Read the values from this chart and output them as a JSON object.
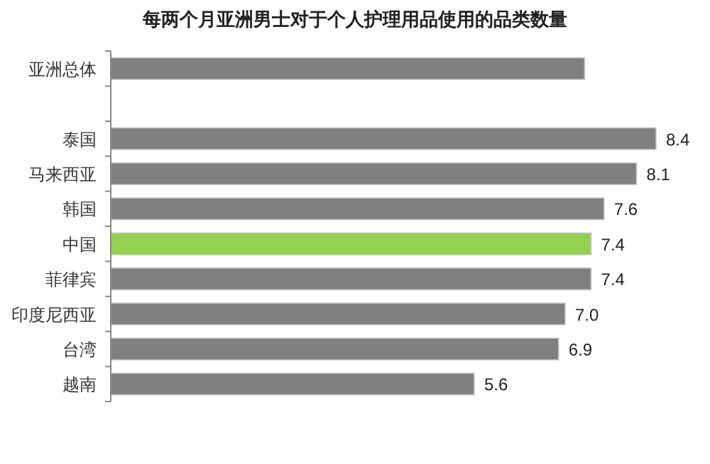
{
  "chart_data": {
    "type": "bar",
    "orientation": "horizontal",
    "title": "每两个月亚洲男士对于个人护理用品使用的品类数量",
    "categories": [
      "亚洲总体",
      null,
      "泰国",
      "马来西亚",
      "韩国",
      "中国",
      "菲律宾",
      "印度尼西亚",
      "台湾",
      "越南"
    ],
    "values": [
      7.3,
      null,
      8.4,
      8.1,
      7.6,
      7.4,
      7.4,
      7.0,
      6.9,
      5.6
    ],
    "colors": [
      "#808080",
      null,
      "#808080",
      "#808080",
      "#808080",
      "#92d050",
      "#808080",
      "#808080",
      "#808080",
      "#808080"
    ],
    "value_labels": [
      null,
      null,
      "8.4",
      "8.1",
      "7.6",
      "7.4",
      "7.4",
      "7.0",
      "6.9",
      "5.6"
    ]
  }
}
